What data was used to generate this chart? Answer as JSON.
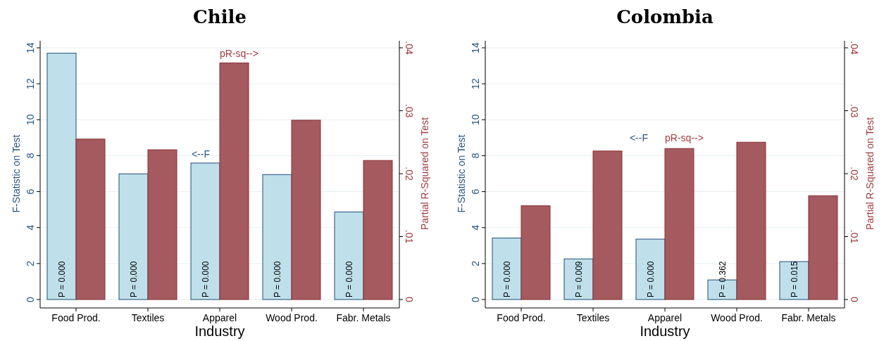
{
  "chart_data": [
    {
      "type": "bar",
      "title": "Chile",
      "xlabel": "Industry",
      "ylabel": "F-Statistic on Test",
      "y2label": "Partial R-Squared on Test",
      "categories": [
        "Food Prod.",
        "Textiles",
        "Apparel",
        "Wood Prod.",
        "Fabr. Metals"
      ],
      "series": [
        {
          "color": "#bfe0ea",
          "values": [
            13.7,
            6.99,
            7.59,
            6.95,
            4.87
          ]
        },
        {
          "color": "#a45a5e",
          "axis": "y2",
          "values": [
            0.0255,
            0.0238,
            0.0376,
            0.0285,
            0.0221
          ]
        }
      ],
      "ylim": [
        0,
        14
      ],
      "yticks": [
        0,
        2,
        4,
        6,
        8,
        10,
        12,
        14
      ],
      "y2lim": [
        0,
        0.04
      ],
      "y2ticks": [
        {
          "value": 0,
          "label": "0"
        },
        {
          "value": 0.01,
          "label": ".01"
        },
        {
          "value": 0.02,
          "label": ".02"
        },
        {
          "value": 0.03,
          "label": ".03"
        },
        {
          "value": 0.04,
          "label": ".04"
        }
      ],
      "grid": "y",
      "annotations": [
        "<--F",
        "pR-sq-->",
        {
          "text": "P = 0.000",
          "x": "Food Prod."
        },
        {
          "text": "P = 0.000",
          "x": "Textiles"
        },
        {
          "text": "P = 0.000",
          "x": "Apparel"
        },
        {
          "text": "P = 0.000",
          "x": "Wood Prod."
        },
        {
          "text": "P = 0.000",
          "x": "Fabr. Metals"
        }
      ]
    },
    {
      "type": "bar",
      "title": "Colombia",
      "xlabel": "Industry",
      "ylabel": "F-Statistic on Test",
      "y2label": "Partial R-Squared on Test",
      "categories": [
        "Food Prod.",
        "Textiles",
        "Apparel",
        "Wood Prod.",
        "Fabr. Metals"
      ],
      "series": [
        {
          "color": "#bfe0ea",
          "values": [
            3.42,
            2.26,
            3.36,
            1.09,
            2.11
          ]
        },
        {
          "color": "#a45a5e",
          "axis": "y2",
          "values": [
            0.0149,
            0.0236,
            0.024,
            0.025,
            0.0165
          ]
        }
      ],
      "ylim": [
        0,
        14
      ],
      "yticks": [
        0,
        2,
        4,
        6,
        8,
        10,
        12,
        14
      ],
      "y2lim": [
        0,
        0.04
      ],
      "y2ticks": [
        {
          "value": 0,
          "label": "0"
        },
        {
          "value": 0.01,
          "label": ".01"
        },
        {
          "value": 0.02,
          "label": ".02"
        },
        {
          "value": 0.03,
          "label": ".03"
        },
        {
          "value": 0.04,
          "label": ".04"
        }
      ],
      "grid": "y",
      "annotations": [
        "<--F",
        "pR-sq-->",
        {
          "text": "P = 0.000",
          "x": "Food Prod."
        },
        {
          "text": "P = 0.009",
          "x": "Textiles"
        },
        {
          "text": "P = 0.000",
          "x": "Apparel"
        },
        {
          "text": "P = 0.362",
          "x": "Wood Prod."
        },
        {
          "text": "P = 0.015",
          "x": "Fabr. Metals"
        }
      ]
    }
  ]
}
